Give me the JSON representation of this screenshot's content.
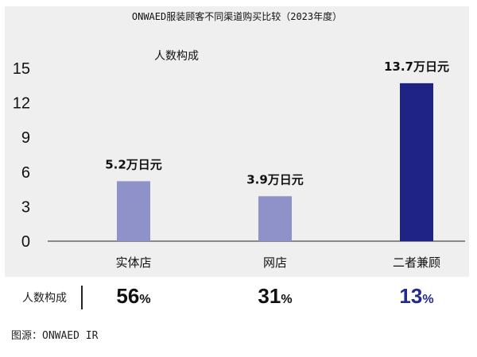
{
  "chart_data": {
    "type": "bar",
    "title": "ONWAED服装顾客不同渠道购买比较（2023年度）",
    "ylabel": "人数构成",
    "categories": [
      "实体店",
      "网店",
      "二者兼顾"
    ],
    "values": [
      5.2,
      3.9,
      13.7
    ],
    "data_labels": [
      "5.2万日元",
      "3.9万日元",
      "13.7万日元"
    ],
    "yticks": [
      "0",
      "3",
      "6",
      "9",
      "12",
      "15"
    ],
    "ylim": [
      0,
      15
    ],
    "bar_colors": [
      "#8f92c8",
      "#8f92c8",
      "#1f2385"
    ],
    "plot_background": "#efefef",
    "grid": false
  },
  "panel": {
    "label": "人数构成",
    "percentages": [
      {
        "value": "56",
        "unit": "%",
        "color": "#111111"
      },
      {
        "value": "31",
        "unit": "%",
        "color": "#111111"
      },
      {
        "value": "13",
        "unit": "%",
        "color": "#262a8c"
      }
    ]
  },
  "source": "图源：ONWAED IR"
}
